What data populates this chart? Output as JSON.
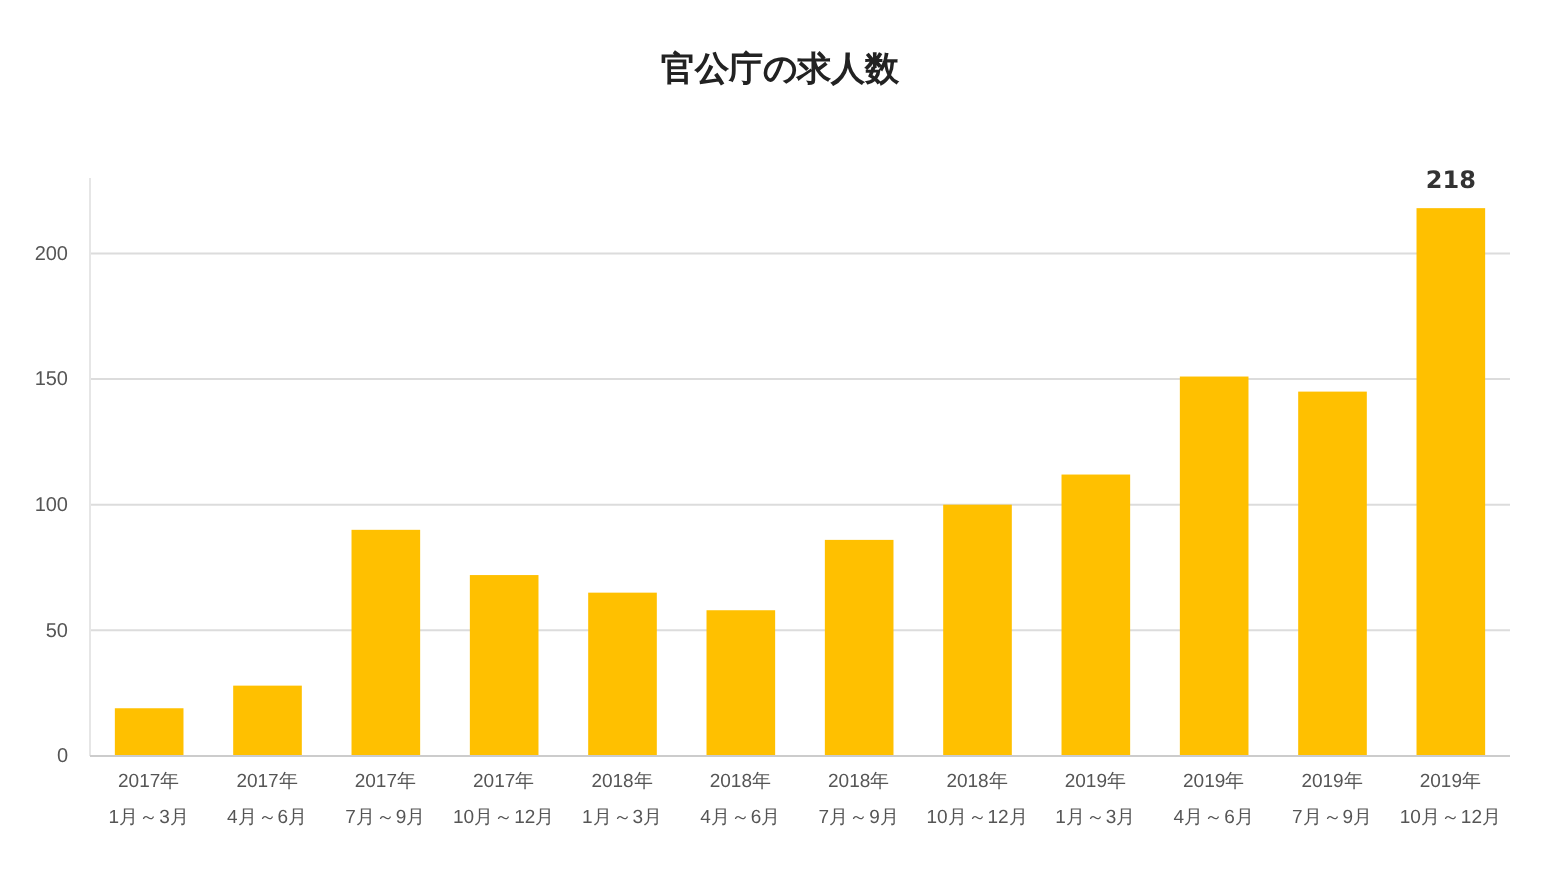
{
  "chart_data": {
    "type": "bar",
    "title": "官公庁の求人数",
    "categories": [
      "2017年\n1月～3月",
      "2017年\n4月～6月",
      "2017年\n7月～9月",
      "2017年\n10月～12月",
      "2018年\n1月～3月",
      "2018年\n4月～6月",
      "2018年\n7月～9月",
      "2018年\n10月～12月",
      "2019年\n1月～3月",
      "2019年\n4月～6月",
      "2019年\n7月～9月",
      "2019年\n10月～12月"
    ],
    "values": [
      19,
      28,
      90,
      72,
      65,
      58,
      86,
      100,
      112,
      151,
      145,
      218
    ],
    "value_labels": [
      null,
      null,
      null,
      null,
      null,
      null,
      null,
      null,
      null,
      null,
      null,
      "218"
    ],
    "color": "#ffc000",
    "ylim": [
      0,
      230
    ],
    "yticks": [
      0,
      50,
      100,
      150,
      200
    ],
    "grid": "y"
  }
}
